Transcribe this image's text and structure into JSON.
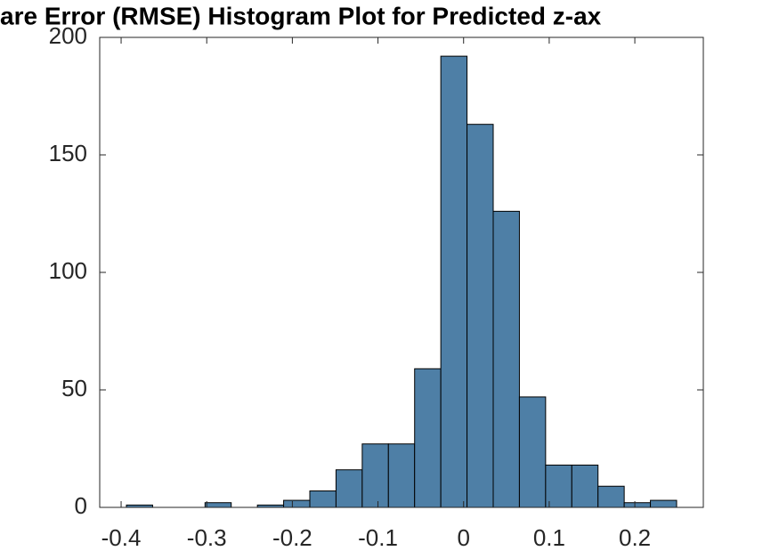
{
  "chart_data": {
    "type": "histogram",
    "title": "are Error (RMSE) Histogram Plot for Predicted z-ax",
    "bins": [
      -0.3938,
      -0.3632,
      -0.3326,
      -0.302,
      -0.2714,
      -0.2408,
      -0.2102,
      -0.1796,
      -0.149,
      -0.1184,
      -0.0878,
      -0.0572,
      -0.0266,
      0.004,
      0.0346,
      0.0652,
      0.0958,
      0.1264,
      0.157,
      0.1876,
      0.2182,
      0.2488
    ],
    "values": [
      1,
      0,
      0,
      2,
      0,
      1,
      3,
      7,
      16,
      27,
      27,
      59,
      192,
      163,
      126,
      47,
      18,
      18,
      9,
      2,
      3
    ],
    "color": "#4e7fa6",
    "xlim": [
      -0.425,
      0.28
    ],
    "xticks": [
      -0.4,
      -0.3,
      -0.2,
      -0.1,
      0,
      0.1,
      0.2
    ],
    "ylim": [
      0,
      200
    ],
    "yticks": [
      0,
      50,
      100,
      150,
      200
    ]
  }
}
